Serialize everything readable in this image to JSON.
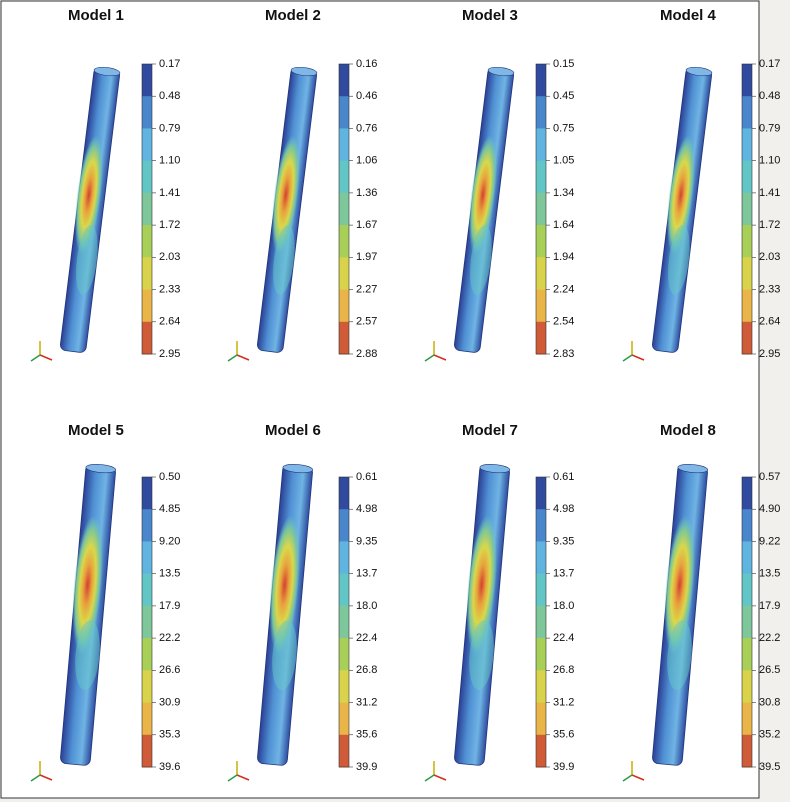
{
  "panels": [
    {
      "title": "Model 1",
      "legend": [
        "0.17",
        "0.48",
        "0.79",
        "1.10",
        "1.41",
        "1.72",
        "2.03",
        "2.33",
        "2.64",
        "2.95"
      ]
    },
    {
      "title": "Model 2",
      "legend": [
        "0.16",
        "0.46",
        "0.76",
        "1.06",
        "1.36",
        "1.67",
        "1.97",
        "2.27",
        "2.57",
        "2.88"
      ]
    },
    {
      "title": "Model 3",
      "legend": [
        "0.15",
        "0.45",
        "0.75",
        "1.05",
        "1.34",
        "1.64",
        "1.94",
        "2.24",
        "2.54",
        "2.83"
      ]
    },
    {
      "title": "Model 4",
      "legend": [
        "0.17",
        "0.48",
        "0.79",
        "1.10",
        "1.41",
        "1.72",
        "2.03",
        "2.33",
        "2.64",
        "2.95"
      ]
    },
    {
      "title": "Model 5",
      "legend": [
        "0.50",
        "4.85",
        "9.20",
        "13.5",
        "17.9",
        "22.2",
        "26.6",
        "30.9",
        "35.3",
        "39.6"
      ]
    },
    {
      "title": "Model 6",
      "legend": [
        "0.61",
        "4.98",
        "9.35",
        "13.7",
        "18.0",
        "22.4",
        "26.8",
        "31.2",
        "35.6",
        "39.9"
      ]
    },
    {
      "title": "Model 7",
      "legend": [
        "0.61",
        "4.98",
        "9.35",
        "13.7",
        "18.0",
        "22.4",
        "26.8",
        "31.2",
        "35.6",
        "39.9"
      ]
    },
    {
      "title": "Model 8",
      "legend": [
        "0.57",
        "4.90",
        "9.22",
        "13.5",
        "17.9",
        "22.2",
        "26.5",
        "30.8",
        "35.2",
        "39.5"
      ]
    }
  ]
}
